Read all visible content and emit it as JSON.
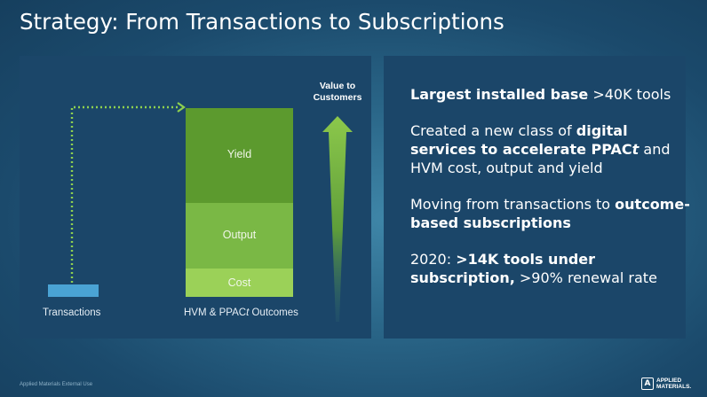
{
  "slide": {
    "title": "Strategy: From Transactions to Subscriptions",
    "footer": "Applied Materials External Use",
    "logo": {
      "line1": "APPLIED",
      "line2": "MATERIALS.",
      "icon": "applied-materials-logo-icon"
    }
  },
  "diagram": {
    "value_label_line1": "Value to",
    "value_label_line2": "Customers",
    "transactions_label": "Transactions",
    "outcomes_label_pre": "HVM & PPAC",
    "outcomes_label_italic": "t",
    "outcomes_label_post": " Outcomes",
    "segments": {
      "yield": "Yield",
      "output": "Output",
      "cost": "Cost"
    },
    "colors": {
      "transactions": "#4aa3d4",
      "yield": "#5c9a2e",
      "output": "#7ab845",
      "cost": "#9bd158",
      "arrow": "#7ab845"
    }
  },
  "bullets": [
    {
      "bold": "Largest installed base",
      "rest": " >40K tools"
    },
    {
      "pre": "Created a new class of ",
      "bold": "digital services to accelerate PPAC",
      "bold_italic": "t",
      "post": " and HVM cost, output and yield"
    },
    {
      "pre": "Moving from transactions to ",
      "bold": "outcome-based subscriptions"
    },
    {
      "pre": "2020: ",
      "bold": ">14K tools under subscription,",
      "post": " >90% renewal rate"
    }
  ]
}
